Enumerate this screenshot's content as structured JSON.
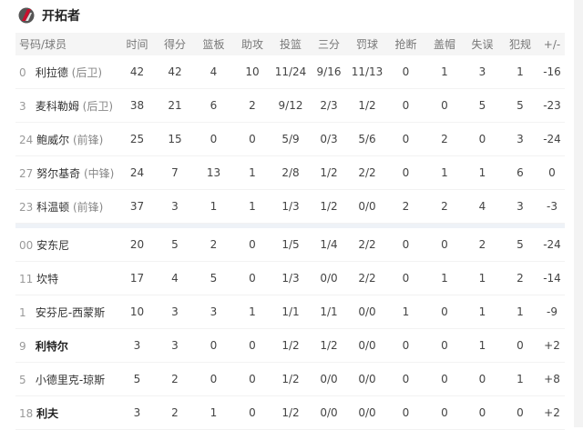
{
  "team": {
    "name": "开拓者",
    "logo_icon": "trail-blazers-logo"
  },
  "columns": [
    "号码/球员",
    "时间",
    "得分",
    "篮板",
    "助攻",
    "投篮",
    "三分",
    "罚球",
    "抢断",
    "盖帽",
    "失误",
    "犯规",
    "+/-"
  ],
  "starters": [
    {
      "number": "0",
      "name": "利拉德",
      "position": "(后卫)",
      "bold": false,
      "stats": [
        "42",
        "42",
        "4",
        "10",
        "11/24",
        "9/16",
        "11/13",
        "0",
        "1",
        "3",
        "1",
        "-16"
      ]
    },
    {
      "number": "3",
      "name": "麦科勒姆",
      "position": "(后卫)",
      "bold": false,
      "stats": [
        "38",
        "21",
        "6",
        "2",
        "9/12",
        "2/3",
        "1/2",
        "0",
        "0",
        "5",
        "5",
        "-23"
      ]
    },
    {
      "number": "24",
      "name": "鲍威尔",
      "position": "(前锋)",
      "bold": false,
      "stats": [
        "25",
        "15",
        "0",
        "0",
        "5/9",
        "0/3",
        "5/6",
        "0",
        "2",
        "0",
        "3",
        "-24"
      ]
    },
    {
      "number": "27",
      "name": "努尔基奇",
      "position": "(中锋)",
      "bold": false,
      "stats": [
        "24",
        "7",
        "13",
        "1",
        "2/8",
        "1/2",
        "2/2",
        "0",
        "1",
        "1",
        "6",
        "0"
      ]
    },
    {
      "number": "23",
      "name": "科温顿",
      "position": "(前锋)",
      "bold": false,
      "stats": [
        "37",
        "3",
        "1",
        "1",
        "1/3",
        "1/2",
        "0/0",
        "2",
        "2",
        "4",
        "3",
        "-3"
      ]
    }
  ],
  "bench": [
    {
      "number": "00",
      "name": "安东尼",
      "position": "",
      "bold": false,
      "stats": [
        "20",
        "5",
        "2",
        "0",
        "1/5",
        "1/4",
        "2/2",
        "0",
        "0",
        "2",
        "5",
        "-24"
      ]
    },
    {
      "number": "11",
      "name": "坎特",
      "position": "",
      "bold": false,
      "stats": [
        "17",
        "4",
        "5",
        "0",
        "1/3",
        "0/0",
        "2/2",
        "0",
        "1",
        "1",
        "2",
        "-14"
      ]
    },
    {
      "number": "1",
      "name": "安芬尼-西蒙斯",
      "position": "",
      "bold": false,
      "stats": [
        "10",
        "3",
        "3",
        "1",
        "1/1",
        "1/1",
        "0/0",
        "1",
        "0",
        "1",
        "1",
        "-9"
      ]
    },
    {
      "number": "9",
      "name": "利特尔",
      "position": "",
      "bold": true,
      "stats": [
        "3",
        "3",
        "0",
        "0",
        "1/2",
        "1/2",
        "0/0",
        "0",
        "0",
        "1",
        "0",
        "+2"
      ]
    },
    {
      "number": "5",
      "name": "小德里克-琼斯",
      "position": "",
      "bold": false,
      "stats": [
        "5",
        "2",
        "0",
        "0",
        "1/2",
        "0/0",
        "0/0",
        "0",
        "0",
        "0",
        "1",
        "+8"
      ]
    },
    {
      "number": "18",
      "name": "利夫",
      "position": "",
      "bold": true,
      "stats": [
        "3",
        "2",
        "1",
        "0",
        "1/2",
        "0/0",
        "0/0",
        "0",
        "0",
        "0",
        "0",
        "+2"
      ]
    }
  ]
}
